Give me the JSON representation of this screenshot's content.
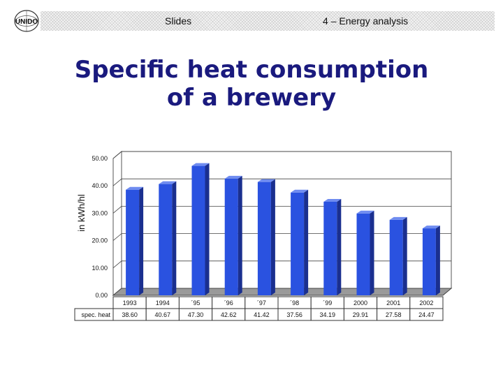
{
  "header": {
    "left_label": "Slides",
    "right_label": "4 – Energy analysis"
  },
  "slide": {
    "title_line1": "Specific heat consumption",
    "title_line2": "of a brewery"
  },
  "colors": {
    "bar": "#2a52e0",
    "bar_side": "#1a2f8f",
    "bar_top": "#6f8cf0",
    "title": "#1a1a7e"
  },
  "chart_data": {
    "type": "bar",
    "title": "",
    "xlabel": "",
    "ylabel": "in kWh/hl",
    "ylim": [
      0,
      50
    ],
    "yticks": [
      "0.00",
      "10.00",
      "20.00",
      "30.00",
      "40.00",
      "50.00"
    ],
    "grid": true,
    "categories": [
      "1993",
      "1994",
      "´95",
      "´96",
      "´97",
      "´98",
      "´99",
      "2000",
      "2001",
      "2002"
    ],
    "series": [
      {
        "name": "spec. heat",
        "values": [
          38.6,
          40.67,
          47.3,
          42.62,
          41.42,
          37.56,
          34.19,
          29.91,
          27.58,
          24.47
        ],
        "labels": [
          "38.60",
          "40.67",
          "47.30",
          "42.62",
          "41.42",
          "37.56",
          "34.19",
          "29.91",
          "27.58",
          "24.47"
        ]
      }
    ]
  }
}
